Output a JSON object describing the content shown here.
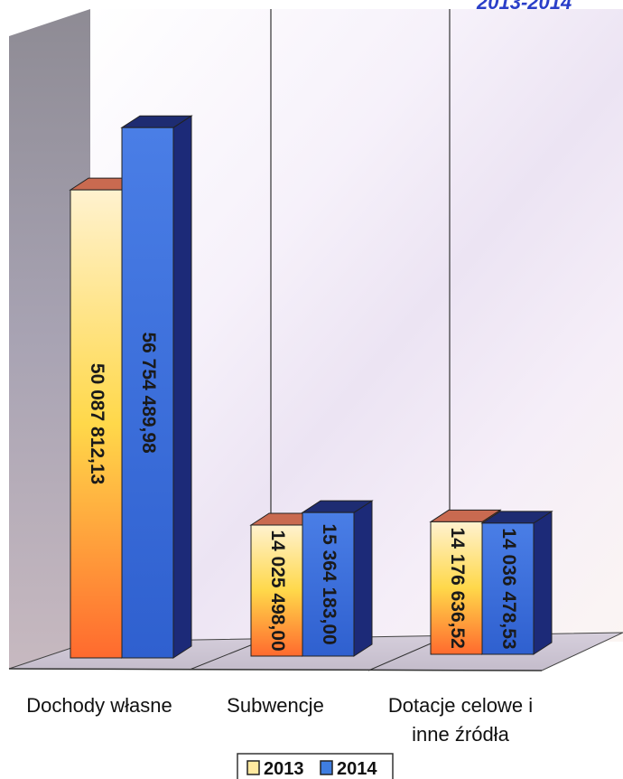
{
  "chart_data": {
    "type": "bar",
    "title_visible_fragment": "2013-2014",
    "categories": [
      "Dochody własne",
      "Subwencje",
      "Dotacje celowe i inne źródła"
    ],
    "category_lines": [
      [
        "Dochody własne"
      ],
      [
        "Subwencje"
      ],
      [
        "Dotacje celowe i",
        "inne źródła"
      ]
    ],
    "series": [
      {
        "name": "2013",
        "values": [
          50087812.13,
          14025498.0,
          14176636.52
        ],
        "labels": [
          "50 087 812,13",
          "14 025 498,00",
          "14 176 636,52"
        ],
        "color_top": "#ffd84a",
        "color_bottom": "#ff6a2e",
        "color_side": "#d96a3a",
        "color_cap": "#c96a50"
      },
      {
        "name": "2014",
        "values": [
          56754489.98,
          15364183.0,
          14036478.53
        ],
        "labels": [
          "56 754 489,98",
          "15 364 183,00",
          "14 036 478,53"
        ],
        "color_top": "#3f7de0",
        "color_bottom": "#2a5fc8",
        "color_side": "#1c2a78",
        "color_cap": "#1e2c72"
      }
    ],
    "legend": {
      "position": "bottom-center",
      "entries": [
        "2013",
        "2014"
      ]
    },
    "grid": false,
    "ylim": [
      0,
      60000000
    ]
  }
}
